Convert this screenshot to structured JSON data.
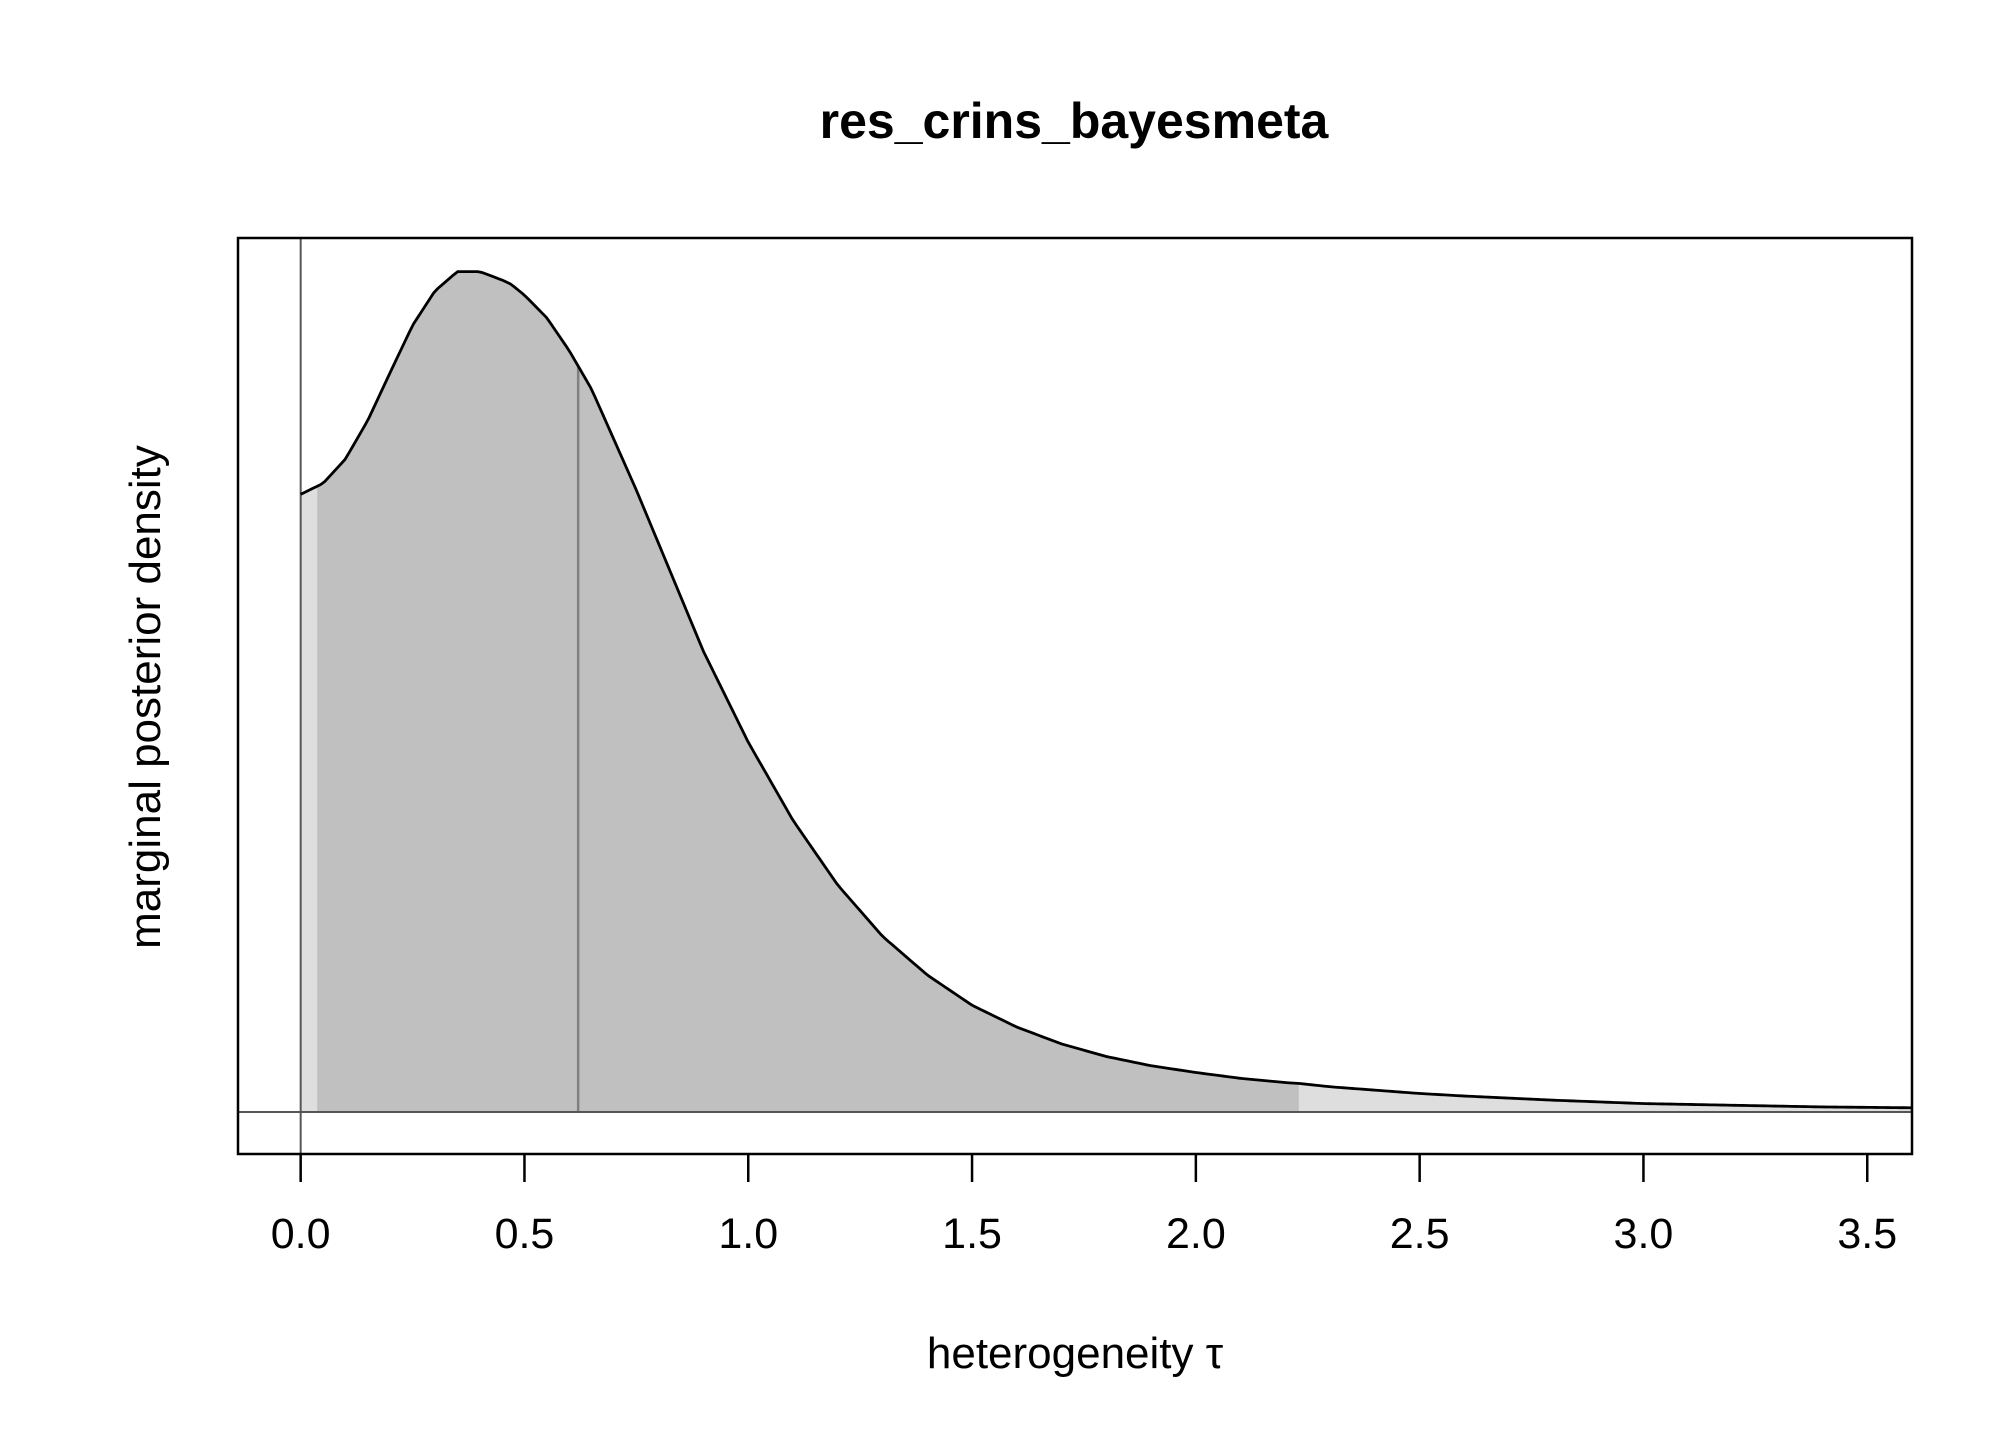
{
  "chart_data": {
    "type": "area",
    "title": "res_crins_bayesmeta",
    "xlabel": "heterogeneity τ",
    "ylabel": "marginal posterior density",
    "xlim": [
      -0.14,
      3.6
    ],
    "ylim": [
      -0.05,
      1.04
    ],
    "y_axis_ticks_shown": false,
    "grid": false,
    "legend": "none",
    "x_ticks": [
      0.0,
      0.5,
      1.0,
      1.5,
      2.0,
      2.5,
      3.0,
      3.5
    ],
    "x_tick_labels": [
      "0.0",
      "0.5",
      "1.0",
      "1.5",
      "2.0",
      "2.5",
      "3.0",
      "3.5"
    ],
    "series": [
      {
        "x": [
          0.0,
          0.05,
          0.1,
          0.15,
          0.2,
          0.25,
          0.3,
          0.35,
          0.4,
          0.45,
          0.47,
          0.5,
          0.55,
          0.6,
          0.65,
          0.7,
          0.75,
          0.8,
          0.85,
          0.9,
          1.0,
          1.1,
          1.2,
          1.3,
          1.4,
          1.5,
          1.6,
          1.7,
          1.8,
          1.9,
          2.0,
          2.1,
          2.2,
          2.23,
          2.3,
          2.4,
          2.5,
          2.6,
          2.8,
          3.0,
          3.2,
          3.4,
          3.6
        ],
        "y": [
          0.735,
          0.748,
          0.777,
          0.823,
          0.88,
          0.936,
          0.977,
          1.0,
          1.0,
          0.99,
          0.985,
          0.972,
          0.945,
          0.906,
          0.86,
          0.8,
          0.74,
          0.676,
          0.612,
          0.548,
          0.44,
          0.347,
          0.27,
          0.209,
          0.163,
          0.127,
          0.101,
          0.081,
          0.066,
          0.055,
          0.047,
          0.04,
          0.035,
          0.034,
          0.03,
          0.026,
          0.022,
          0.019,
          0.014,
          0.01,
          0.008,
          0.006,
          0.005
        ]
      }
    ],
    "shaded_interval": [
      0.037,
      2.23
    ],
    "median_line_x": 0.62,
    "reference_line_x": 0.0,
    "reference_line_y": 0.0,
    "colors": {
      "interval_fill": "#c0c0c0",
      "tail_fill": "#dedede",
      "curve": "#000000",
      "reference_line": "#555555",
      "median_line": "#808080"
    }
  }
}
